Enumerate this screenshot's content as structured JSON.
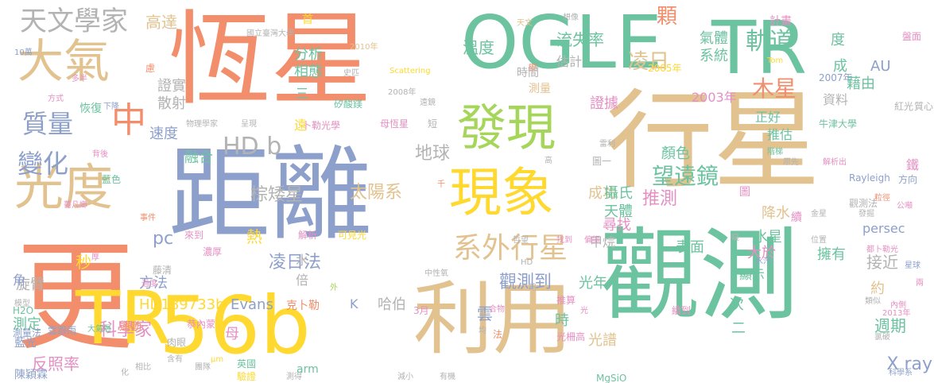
{
  "palette": {
    "orange": "#f28e6b",
    "teal": "#6cc3a0",
    "blue": "#8da0cb",
    "pink": "#e58fc3",
    "green": "#a5d65a",
    "yellow": "#ffd92f",
    "tan": "#e2c28f",
    "gray": "#b3b3b3"
  },
  "words": [
    {
      "text": "恆星",
      "color": "orange"
    },
    {
      "text": "OGLE",
      "color": "teal"
    },
    {
      "text": "TR",
      "color": "teal"
    },
    {
      "text": "行星",
      "color": "tan"
    },
    {
      "text": "距離",
      "color": "blue"
    },
    {
      "text": "觀測",
      "color": "teal"
    },
    {
      "text": "更",
      "color": "orange"
    },
    {
      "text": "56b",
      "color": "yellow"
    },
    {
      "text": "利用",
      "color": "tan"
    },
    {
      "text": "TR",
      "color": "yellow"
    },
    {
      "text": "發現",
      "color": "green"
    },
    {
      "text": "現象",
      "color": "yellow"
    },
    {
      "text": "大氣",
      "color": "tan"
    },
    {
      "text": "光度",
      "color": "tan"
    },
    {
      "text": "中",
      "color": "orange"
    },
    {
      "text": "天文學家",
      "color": "gray"
    },
    {
      "text": "系外行星",
      "color": "tan"
    },
    {
      "text": "HD b",
      "color": "gray"
    },
    {
      "text": "質量",
      "color": "blue"
    },
    {
      "text": "變化",
      "color": "blue"
    },
    {
      "text": "軌道",
      "color": "teal"
    },
    {
      "text": "凌日",
      "color": "tan"
    },
    {
      "text": "木星",
      "color": "orange"
    },
    {
      "text": "望遠鏡",
      "color": "teal"
    },
    {
      "text": "推測",
      "color": "pink"
    },
    {
      "text": "顆",
      "color": "orange"
    },
    {
      "text": "氣體",
      "color": "teal"
    },
    {
      "text": "計畫",
      "color": "pink"
    },
    {
      "text": "系統",
      "color": "teal"
    },
    {
      "text": "高達",
      "color": "tan"
    },
    {
      "text": "溫度",
      "color": "teal"
    },
    {
      "text": "流失率",
      "color": "teal"
    },
    {
      "text": "估計",
      "color": "gray"
    },
    {
      "text": "證據",
      "color": "pink"
    },
    {
      "text": "太陽系",
      "color": "tan"
    },
    {
      "text": "地球",
      "color": "gray"
    },
    {
      "text": "棕矮星",
      "color": "gray"
    },
    {
      "text": "凌日法",
      "color": "blue"
    },
    {
      "text": "觀測到",
      "color": "blue"
    },
    {
      "text": "科學家",
      "color": "pink"
    },
    {
      "text": "HD189733b",
      "color": "yellow"
    },
    {
      "text": "Evans",
      "color": "blue"
    },
    {
      "text": "pc",
      "color": "blue"
    },
    {
      "text": "秒",
      "color": "yellow"
    },
    {
      "text": "融合",
      "color": "teal"
    },
    {
      "text": "旋臂",
      "color": "gray"
    },
    {
      "text": "分析",
      "color": "teal"
    },
    {
      "text": "相態",
      "color": "teal"
    },
    {
      "text": "證實",
      "color": "gray"
    },
    {
      "text": "散射",
      "color": "gray"
    },
    {
      "text": "速度",
      "color": "blue"
    },
    {
      "text": "三",
      "color": "teal"
    },
    {
      "text": "首",
      "color": "yellow"
    },
    {
      "text": "國立臺灣大學",
      "color": "gray"
    },
    {
      "text": "想像",
      "color": "gray"
    },
    {
      "text": "2010年",
      "color": "tan"
    },
    {
      "text": "2008年",
      "color": "gray"
    },
    {
      "text": "Scattering",
      "color": "yellow"
    },
    {
      "text": "2003年",
      "color": "pink"
    },
    {
      "text": "2005年",
      "color": "yellow"
    },
    {
      "text": "2007年",
      "color": "blue"
    },
    {
      "text": "AU",
      "color": "blue"
    },
    {
      "text": "藉由",
      "color": "teal"
    },
    {
      "text": "資料",
      "color": "gray"
    },
    {
      "text": "成",
      "color": "teal"
    },
    {
      "text": "度",
      "color": "teal"
    },
    {
      "text": "正好",
      "color": "teal"
    },
    {
      "text": "推估",
      "color": "teal"
    },
    {
      "text": "大於",
      "color": "pink"
    },
    {
      "text": "顏色",
      "color": "teal"
    },
    {
      "text": "成功",
      "color": "tan"
    },
    {
      "text": "攝氏",
      "color": "teal"
    },
    {
      "text": "天體",
      "color": "teal"
    },
    {
      "text": "尋找",
      "color": "pink"
    },
    {
      "text": "降水",
      "color": "tan"
    },
    {
      "text": "表面",
      "color": "teal"
    },
    {
      "text": "水星",
      "color": "teal"
    },
    {
      "text": "擁有",
      "color": "teal"
    },
    {
      "text": "接近",
      "color": "gray"
    },
    {
      "text": "約",
      "color": "tan"
    },
    {
      "text": "顯示",
      "color": "teal"
    },
    {
      "text": "週期",
      "color": "teal"
    },
    {
      "text": "X ray",
      "color": "blue"
    },
    {
      "text": "光年",
      "color": "teal"
    },
    {
      "text": "時",
      "color": "teal"
    },
    {
      "text": "光譜",
      "color": "tan"
    },
    {
      "text": "次",
      "color": "teal"
    },
    {
      "text": "二",
      "color": "teal"
    },
    {
      "text": "哈伯",
      "color": "gray"
    },
    {
      "text": "K",
      "color": "blue"
    },
    {
      "text": "雲",
      "color": "blue"
    },
    {
      "text": "水",
      "color": "gray"
    },
    {
      "text": "倍",
      "color": "gray"
    },
    {
      "text": "甲烷",
      "color": "gray"
    },
    {
      "text": "熱",
      "color": "yellow"
    },
    {
      "text": "方法",
      "color": "blue"
    },
    {
      "text": "角",
      "color": "blue"
    },
    {
      "text": "測定",
      "color": "teal"
    },
    {
      "text": "反照率",
      "color": "pink"
    },
    {
      "text": "母",
      "color": "pink"
    },
    {
      "text": "arm",
      "color": "teal"
    },
    {
      "text": "persec",
      "color": "blue"
    },
    {
      "text": "Rayleigh",
      "color": "blue"
    },
    {
      "text": "方向",
      "color": "blue"
    },
    {
      "text": "牛津大學",
      "color": "teal"
    },
    {
      "text": "鐵",
      "color": "pink"
    },
    {
      "text": "紅光",
      "color": "gray"
    },
    {
      "text": "觀測法",
      "color": "gray"
    },
    {
      "text": "發掘",
      "color": "gray"
    },
    {
      "text": "公噸",
      "color": "pink"
    },
    {
      "text": "金星",
      "color": "gray"
    },
    {
      "text": "都卜勒光",
      "color": "pink"
    },
    {
      "text": "位置",
      "color": "gray"
    },
    {
      "text": "星球",
      "color": "blue"
    },
    {
      "text": "內側",
      "color": "pink"
    },
    {
      "text": "2013年",
      "color": "pink"
    },
    {
      "text": "氯破",
      "color": "gray"
    },
    {
      "text": "科學系",
      "color": "blue"
    },
    {
      "text": "類似",
      "color": "gray"
    },
    {
      "text": "克卜勒",
      "color": "orange"
    },
    {
      "text": "陳穎霖",
      "color": "blue"
    },
    {
      "text": "藍光",
      "color": "blue"
    },
    {
      "text": "肉眼",
      "color": "gray"
    },
    {
      "text": "含有",
      "color": "gray"
    },
    {
      "text": "英國",
      "color": "teal"
    },
    {
      "text": "驗證",
      "color": "yellow"
    },
    {
      "text": "測得",
      "color": "gray"
    },
    {
      "text": "減小",
      "color": "gray"
    },
    {
      "text": "有機",
      "color": "gray"
    },
    {
      "text": "MgSiO",
      "color": "teal"
    },
    {
      "text": "恭內蒙",
      "color": "pink"
    },
    {
      "text": "團隊",
      "color": "gray"
    },
    {
      "text": "相比",
      "color": "gray"
    },
    {
      "text": "化",
      "color": "gray"
    },
    {
      "text": "µm",
      "color": "yellow"
    },
    {
      "text": "雲跟雨",
      "color": "blue"
    },
    {
      "text": "大氣層",
      "color": "teal"
    },
    {
      "text": "運動",
      "color": "orange"
    },
    {
      "text": "測量法",
      "color": "blue"
    },
    {
      "text": "H2O",
      "color": "teal"
    },
    {
      "text": "薔凡鄉",
      "color": "pink"
    },
    {
      "text": "事件",
      "color": "orange"
    },
    {
      "text": "厚",
      "color": "pink"
    },
    {
      "text": "藍色",
      "color": "teal"
    },
    {
      "text": "解析",
      "color": "pink"
    },
    {
      "text": "可見光",
      "color": "yellow"
    },
    {
      "text": "背後",
      "color": "pink"
    },
    {
      "text": "恢復",
      "color": "teal"
    },
    {
      "text": "下降",
      "color": "blue"
    },
    {
      "text": "多半",
      "color": "pink"
    },
    {
      "text": "方式",
      "color": "pink"
    },
    {
      "text": "10萬",
      "color": "blue"
    },
    {
      "text": "矽酸鎂",
      "color": "teal"
    },
    {
      "text": "史匹",
      "color": "gray"
    },
    {
      "text": "物理學家",
      "color": "gray"
    },
    {
      "text": "呈現",
      "color": "gray"
    },
    {
      "text": "卜勒光學",
      "color": "pink"
    },
    {
      "text": "母恆星",
      "color": "pink"
    },
    {
      "text": "短",
      "color": "gray"
    },
    {
      "text": "遠鏡",
      "color": "gray"
    },
    {
      "text": "遠",
      "color": "yellow"
    },
    {
      "text": "來到",
      "color": "pink"
    },
    {
      "text": "慮",
      "color": "orange"
    },
    {
      "text": "學",
      "color": "orange"
    },
    {
      "text": "時間",
      "color": "gray"
    },
    {
      "text": "測量",
      "color": "tan"
    },
    {
      "text": "天文",
      "color": "tan"
    },
    {
      "text": "Tom",
      "color": "yellow"
    },
    {
      "text": "質心",
      "color": "gray"
    },
    {
      "text": "盤面",
      "color": "pink"
    },
    {
      "text": "雷利",
      "color": "gray"
    },
    {
      "text": "圖一",
      "color": "gray"
    },
    {
      "text": "高",
      "color": "gray"
    },
    {
      "text": "原先",
      "color": "gray"
    },
    {
      "text": "解析出",
      "color": "pink"
    },
    {
      "text": "粒徑",
      "color": "orange"
    },
    {
      "text": "階梯",
      "color": "teal"
    },
    {
      "text": "千",
      "color": "orange"
    },
    {
      "text": "圖",
      "color": "pink"
    },
    {
      "text": "水汽",
      "color": "blue"
    },
    {
      "text": "續",
      "color": "pink"
    },
    {
      "text": "窺",
      "color": "gray"
    },
    {
      "text": "找到",
      "color": "pink"
    },
    {
      "text": "偏振",
      "color": "pink"
    },
    {
      "text": "哲望",
      "color": "gray"
    },
    {
      "text": "HD",
      "color": "gray"
    },
    {
      "text": "中性氧",
      "color": "gray"
    },
    {
      "text": "外",
      "color": "green"
    },
    {
      "text": "3月",
      "color": "pink"
    },
    {
      "text": "合物",
      "color": "pink"
    },
    {
      "text": "法",
      "color": "orange"
    },
    {
      "text": "均",
      "color": "gray"
    },
    {
      "text": "推算",
      "color": "pink"
    },
    {
      "text": "光柵高",
      "color": "pink"
    },
    {
      "text": "光",
      "color": "pink"
    },
    {
      "text": "續到",
      "color": "pink"
    },
    {
      "text": "略",
      "color": "gray"
    },
    {
      "text": "兩",
      "color": "pink"
    },
    {
      "text": "濃厚",
      "color": "pink"
    },
    {
      "text": "藤清",
      "color": "gray"
    },
    {
      "text": "過度",
      "color": "pink"
    },
    {
      "text": "模型",
      "color": "gray"
    }
  ]
}
